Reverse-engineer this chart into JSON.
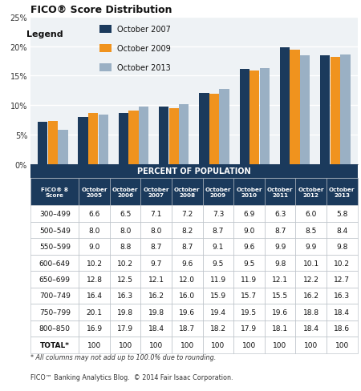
{
  "title": "FICO® Score Distribution",
  "categories": [
    "300–499",
    "500–549",
    "550–599",
    "600–649",
    "650–699",
    "700–749",
    "750–799",
    "800–850"
  ],
  "series": [
    {
      "label": "October 2007",
      "color": "#1b3a5c",
      "values": [
        7.1,
        8.0,
        8.7,
        9.7,
        12.1,
        16.2,
        19.8,
        18.4
      ]
    },
    {
      "label": "October 2009",
      "color": "#f0931e",
      "values": [
        7.3,
        8.7,
        9.1,
        9.5,
        11.9,
        15.9,
        19.4,
        18.2
      ]
    },
    {
      "label": "October 2013",
      "color": "#9ab0c4",
      "values": [
        5.8,
        8.4,
        9.8,
        10.2,
        12.7,
        16.3,
        18.4,
        18.6
      ]
    }
  ],
  "ylim": [
    0,
    25
  ],
  "yticks": [
    0,
    5,
    10,
    15,
    20,
    25
  ],
  "yticklabels": [
    "0%",
    "5%",
    "10%",
    "15%",
    "20%",
    "25%"
  ],
  "chart_bg": "#eef2f5",
  "grid_color": "#ffffff",
  "dark_blue": "#1b3a5c",
  "white": "#ffffff",
  "border_color": "#b0b8c0",
  "table_data": {
    "col_headers": [
      "FICO® 8\nScore",
      "October\n2005",
      "October\n2006",
      "October\n2007",
      "October\n2008",
      "October\n2009",
      "October\n2010",
      "October\n2011",
      "October\n2012",
      "October\n2013"
    ],
    "rows": [
      [
        "300–499",
        "6.6",
        "6.5",
        "7.1",
        "7.2",
        "7.3",
        "6.9",
        "6.3",
        "6.0",
        "5.8"
      ],
      [
        "500–549",
        "8.0",
        "8.0",
        "8.0",
        "8.2",
        "8.7",
        "9.0",
        "8.7",
        "8.5",
        "8.4"
      ],
      [
        "550–599",
        "9.0",
        "8.8",
        "8.7",
        "8.7",
        "9.1",
        "9.6",
        "9.9",
        "9.9",
        "9.8"
      ],
      [
        "600–649",
        "10.2",
        "10.2",
        "9.7",
        "9.6",
        "9.5",
        "9.5",
        "9.8",
        "10.1",
        "10.2"
      ],
      [
        "650–699",
        "12.8",
        "12.5",
        "12.1",
        "12.0",
        "11.9",
        "11.9",
        "12.1",
        "12.2",
        "12.7"
      ],
      [
        "700–749",
        "16.4",
        "16.3",
        "16.2",
        "16.0",
        "15.9",
        "15.7",
        "15.5",
        "16.2",
        "16.3"
      ],
      [
        "750–799",
        "20.1",
        "19.8",
        "19.8",
        "19.6",
        "19.4",
        "19.5",
        "19.6",
        "18.8",
        "18.4"
      ],
      [
        "800–850",
        "16.9",
        "17.9",
        "18.4",
        "18.7",
        "18.2",
        "17.9",
        "18.1",
        "18.4",
        "18.6"
      ],
      [
        "TOTAL*",
        "100",
        "100",
        "100",
        "100",
        "100",
        "100",
        "100",
        "100",
        "100"
      ]
    ]
  },
  "footnote1": "* All columns may not add up to 100.0% due to rounding.",
  "footnote2": "FICO™ Banking Analytics Blog.  © 2014 Fair Isaac Corporation.",
  "legend_title": "Legend",
  "percent_of_pop": "PERCENT OF POPULATION"
}
